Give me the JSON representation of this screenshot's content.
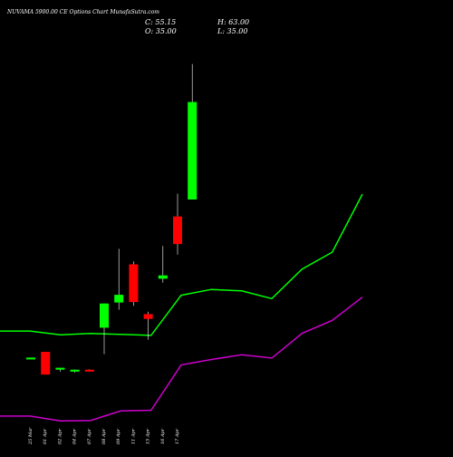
{
  "header": {
    "title": "NUVAMA 5900.00 CE Options Chart MunafaSutra.com",
    "close": "C: 55.15",
    "high": "H: 63.00",
    "open": "O: 35.00",
    "low": "L: 35.00"
  },
  "colors": {
    "background": "#000000",
    "up": "#00ff00",
    "down": "#ff0000",
    "upper_line": "#00ff00",
    "lower_line": "#cc00cc",
    "text": "#ffffff"
  },
  "chart_data": {
    "type": "candlestick",
    "categories": [
      "25 Mar",
      "01 Apr",
      "02 Apr",
      "04 Apr",
      "07 Apr",
      "08 Apr",
      "09 Apr",
      "11 Apr",
      "15 Apr",
      "16 Apr",
      "17 Apr"
    ],
    "candles": [
      {
        "open": 2.2,
        "high": 2.3,
        "low": 2.0,
        "close": 2.3,
        "direction": "up"
      },
      {
        "open": 3.5,
        "high": 3.5,
        "low": -1.2,
        "close": -1.2,
        "direction": "down"
      },
      {
        "open": -0.2,
        "high": 0.2,
        "low": -0.6,
        "close": 0.2,
        "direction": "up"
      },
      {
        "open": -0.6,
        "high": -0.2,
        "low": -0.8,
        "close": -0.2,
        "direction": "up"
      },
      {
        "open": -0.2,
        "high": -0.1,
        "low": -0.6,
        "close": -0.6,
        "direction": "down"
      },
      {
        "open": 8.5,
        "high": 13.5,
        "low": 3.0,
        "close": 13.5,
        "direction": "up"
      },
      {
        "open": 13.7,
        "high": 24.8,
        "low": 12.2,
        "close": 15.3,
        "direction": "up"
      },
      {
        "open": 21.6,
        "high": 22.2,
        "low": 13.0,
        "close": 13.8,
        "direction": "down"
      },
      {
        "open": 11.3,
        "high": 11.8,
        "low": 6.0,
        "close": 10.3,
        "direction": "down"
      },
      {
        "open": 18.6,
        "high": 25.4,
        "low": 17.8,
        "close": 19.3,
        "direction": "up"
      },
      {
        "open": 31.5,
        "high": 36.2,
        "low": 23.6,
        "close": 25.8,
        "direction": "down"
      },
      {
        "open": 35.0,
        "high": 63.0,
        "low": 35.0,
        "close": 55.15,
        "direction": "up"
      }
    ],
    "upper_band": [
      7.8,
      7.8,
      7.0,
      7.3,
      7.1,
      6.9,
      15.2,
      16.4,
      16.1,
      14.5,
      20.6,
      24.1,
      36.1
    ],
    "lower_band": [
      -9.8,
      -9.8,
      -10.8,
      -10.7,
      -8.7,
      -8.6,
      0.8,
      1.9,
      2.9,
      2.2,
      7.3,
      10.0,
      14.8
    ],
    "ylim": [
      -10,
      65
    ],
    "grid": false,
    "legend": "none"
  }
}
